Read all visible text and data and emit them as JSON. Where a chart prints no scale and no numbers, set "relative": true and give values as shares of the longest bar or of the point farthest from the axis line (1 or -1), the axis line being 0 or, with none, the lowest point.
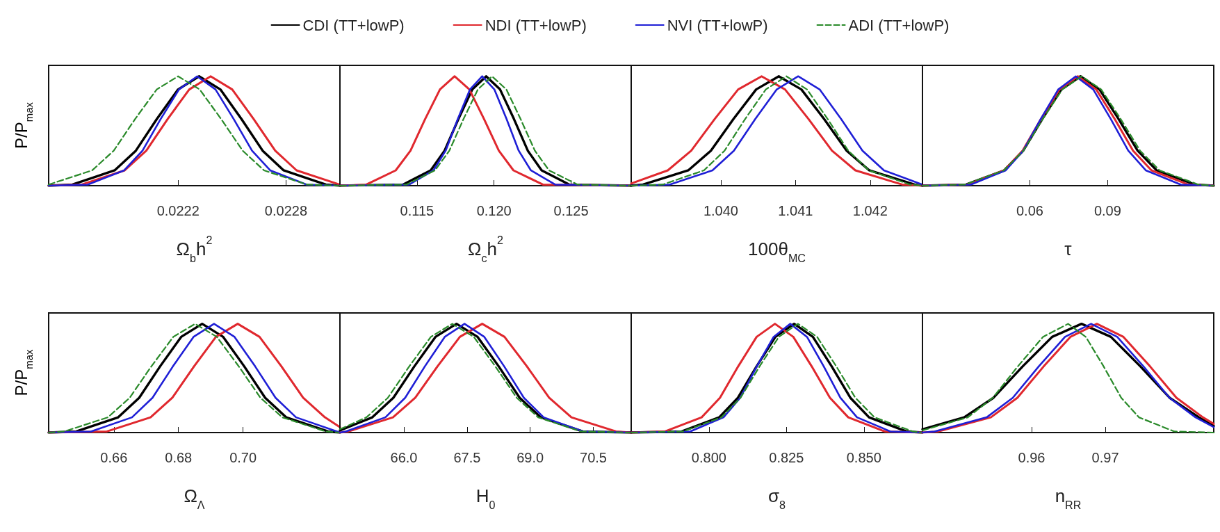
{
  "chart_data": [
    {
      "type": "line",
      "relative": true,
      "legend": "top",
      "tick_labels": "x",
      "marker": "none",
      "ylabel": "P/P$_{max}$",
      "xlabel": "Ω$_{b}$h$^{2}$",
      "xlim": [
        0.02148,
        0.0231
      ],
      "xticks": [
        0.0222,
        0.0228
      ],
      "series": [
        {
          "name": "CDI (TT+lowP)",
          "color": "#000000",
          "x": [
            0.02148,
            0.021612,
            0.021847,
            0.021965,
            0.022082,
            0.0222,
            0.022317,
            0.022435,
            0.022552,
            0.02267,
            0.022787,
            0.023022,
            0.0231
          ],
          "values": [
            0,
            0.01,
            0.14,
            0.32,
            0.61,
            0.88,
            1,
            0.88,
            0.61,
            0.32,
            0.14,
            0.01,
            0
          ]
        },
        {
          "name": "NDI (TT+lowP)",
          "color": "#e0282e",
          "x": [
            0.02148,
            0.021664,
            0.021903,
            0.022023,
            0.022142,
            0.022262,
            0.022381,
            0.022501,
            0.02262,
            0.02274,
            0.022859,
            0.023098
          ],
          "values": [
            0,
            0.01,
            0.14,
            0.32,
            0.61,
            0.88,
            1,
            0.88,
            0.61,
            0.32,
            0.14,
            0.01
          ]
        },
        {
          "name": "NVI (TT+lowP)",
          "color": "#1f1fd6",
          "x": [
            0.02148,
            0.021697,
            0.0219,
            0.022002,
            0.022103,
            0.022205,
            0.022306,
            0.022408,
            0.022509,
            0.022611,
            0.022712,
            0.022915,
            0.0231
          ],
          "values": [
            0,
            0.01,
            0.14,
            0.32,
            0.61,
            0.88,
            1,
            0.88,
            0.61,
            0.32,
            0.14,
            0.01,
            0
          ]
        },
        {
          "name": "ADI (TT+lowP)",
          "color": "#2a8a2a",
          "line_style": "dashed",
          "x": [
            0.02148,
            0.021722,
            0.021842,
            0.021961,
            0.022081,
            0.0222,
            0.02232,
            0.022439,
            0.022559,
            0.022678,
            0.022917,
            0.0231
          ],
          "values": [
            0.01,
            0.14,
            0.32,
            0.61,
            0.88,
            1,
            0.88,
            0.61,
            0.32,
            0.14,
            0.01,
            0
          ]
        }
      ]
    },
    {
      "type": "line",
      "relative": true,
      "tick_labels": "x",
      "marker": "none",
      "xlabel": "Ω$_{c}$h$^{2}$",
      "xlim": [
        0.11,
        0.1289
      ],
      "xticks": [
        0.115,
        {
          "value": 0.12,
          "label": "0.120"
        },
        0.125
      ],
      "series": [
        {
          "color": "#000000",
          "x": [
            0.11,
            0.11409,
            0.11589,
            0.11679,
            0.11769,
            0.11859,
            0.11949,
            0.12039,
            0.12129,
            0.12219,
            0.12309,
            0.12489,
            0.1289
          ],
          "values": [
            0,
            0.01,
            0.14,
            0.32,
            0.61,
            0.88,
            1,
            0.88,
            0.61,
            0.32,
            0.14,
            0.01,
            0
          ]
        },
        {
          "color": "#e0282e",
          "x": [
            0.11,
            0.11171,
            0.11362,
            0.11458,
            0.11553,
            0.11649,
            0.11744,
            0.1184,
            0.11935,
            0.12031,
            0.12126,
            0.12317,
            0.1289
          ],
          "values": [
            0,
            0.01,
            0.14,
            0.32,
            0.61,
            0.88,
            1,
            0.88,
            0.61,
            0.32,
            0.14,
            0.01,
            0
          ]
        },
        {
          "color": "#1f1fd6",
          "x": [
            0.11,
            0.11449,
            0.11607,
            0.11686,
            0.11765,
            0.11844,
            0.11923,
            0.12002,
            0.12081,
            0.1216,
            0.12239,
            0.12397,
            0.1289
          ],
          "values": [
            0,
            0.01,
            0.14,
            0.32,
            0.61,
            0.88,
            1,
            0.88,
            0.61,
            0.32,
            0.14,
            0.01,
            0
          ]
        },
        {
          "color": "#2a8a2a",
          "line_style": "dashed",
          "x": [
            0.11,
            0.11432,
            0.11617,
            0.1171,
            0.11802,
            0.11895,
            0.11987,
            0.1208,
            0.12172,
            0.12265,
            0.12357,
            0.12542,
            0.1289
          ],
          "values": [
            0,
            0.01,
            0.14,
            0.32,
            0.61,
            0.88,
            1,
            0.88,
            0.61,
            0.32,
            0.14,
            0.01,
            0
          ]
        }
      ]
    },
    {
      "type": "line",
      "relative": true,
      "tick_labels": "x",
      "marker": "none",
      "xlabel": "100θ$_{MC}$",
      "xlim": [
        1.0388,
        1.0427
      ],
      "xticks": [
        {
          "value": 1.04,
          "label": "1.040"
        },
        1.041,
        1.042
      ],
      "series": [
        {
          "color": "#000000",
          "x": [
            1.0388,
            1.038958,
            1.039564,
            1.039867,
            1.04017,
            1.040473,
            1.040776,
            1.041079,
            1.041382,
            1.041685,
            1.041988,
            1.042594,
            1.0427
          ],
          "values": [
            0,
            0.01,
            0.14,
            0.32,
            0.61,
            0.88,
            1,
            0.88,
            0.61,
            0.32,
            0.14,
            0.01,
            0
          ]
        },
        {
          "color": "#e0282e",
          "x": [
            1.0388,
            1.03929,
            1.039604,
            1.039918,
            1.040232,
            1.040546,
            1.04086,
            1.041174,
            1.041488,
            1.041802,
            1.04243,
            1.0427
          ],
          "values": [
            0.02,
            0.14,
            0.32,
            0.61,
            0.88,
            1,
            0.88,
            0.61,
            0.32,
            0.14,
            0.01,
            0
          ]
        },
        {
          "color": "#1f1fd6",
          "x": [
            1.0388,
            1.039314,
            1.039888,
            1.040175,
            1.040462,
            1.040749,
            1.041036,
            1.041323,
            1.04161,
            1.041897,
            1.042184,
            1.0427
          ],
          "values": [
            0,
            0.01,
            0.14,
            0.32,
            0.61,
            0.88,
            1,
            0.88,
            0.61,
            0.32,
            0.14,
            0.01
          ]
        },
        {
          "color": "#2a8a2a",
          "line_style": "dashed",
          "x": [
            1.0388,
            1.039222,
            1.039774,
            1.04005,
            1.040326,
            1.040602,
            1.040878,
            1.041154,
            1.04143,
            1.041706,
            1.041982,
            1.042534,
            1.0427
          ],
          "values": [
            0,
            0.01,
            0.14,
            0.32,
            0.61,
            0.88,
            1,
            0.88,
            0.61,
            0.32,
            0.14,
            0.01,
            0
          ]
        }
      ]
    },
    {
      "type": "line",
      "relative": true,
      "tick_labels": "x",
      "marker": "none",
      "xlabel": "τ",
      "xlim": [
        0.0186,
        0.1309
      ],
      "xticks": [
        0.06,
        0.09
      ],
      "series": [
        {
          "color": "#000000",
          "x": [
            0.0186,
            0.0354,
            0.0501,
            0.05745,
            0.0648,
            0.07215,
            0.0795,
            0.08685,
            0.0942,
            0.10155,
            0.1089,
            0.1236,
            0.1309
          ],
          "values": [
            0,
            0.01,
            0.14,
            0.32,
            0.61,
            0.88,
            1,
            0.88,
            0.61,
            0.32,
            0.14,
            0.01,
            0
          ]
        },
        {
          "color": "#e0282e",
          "x": [
            0.0186,
            0.0359,
            0.0501,
            0.0572,
            0.0643,
            0.0714,
            0.0785,
            0.0856,
            0.0927,
            0.0998,
            0.1069,
            0.1211,
            0.1309
          ],
          "values": [
            0,
            0.01,
            0.14,
            0.32,
            0.61,
            0.88,
            1,
            0.88,
            0.61,
            0.32,
            0.14,
            0.01,
            0
          ]
        },
        {
          "color": "#1f1fd6",
          "x": [
            0.0186,
            0.0372,
            0.0507,
            0.05745,
            0.0642,
            0.07095,
            0.0777,
            0.08445,
            0.0912,
            0.09795,
            0.1047,
            0.1182,
            0.1309
          ],
          "values": [
            0,
            0.01,
            0.14,
            0.32,
            0.61,
            0.88,
            1,
            0.88,
            0.61,
            0.32,
            0.14,
            0.01,
            0
          ]
        },
        {
          "color": "#2a8a2a",
          "line_style": "dashed",
          "x": [
            0.0186,
            0.035,
            0.05,
            0.0575,
            0.065,
            0.0725,
            0.08,
            0.0875,
            0.095,
            0.1025,
            0.11,
            0.125,
            0.1309
          ],
          "values": [
            0,
            0.01,
            0.14,
            0.32,
            0.61,
            0.88,
            1,
            0.88,
            0.61,
            0.32,
            0.14,
            0.01,
            0
          ]
        }
      ]
    },
    {
      "type": "line",
      "relative": true,
      "tick_labels": "x",
      "marker": "none",
      "ylabel": "P/P$_{max}$",
      "xlabel": "Ω$_{Λ}$",
      "xlim": [
        0.6398,
        0.73
      ],
      "xticks": [
        0.66,
        0.68,
        {
          "value": 0.7,
          "label": "0.70"
        }
      ],
      "series": [
        {
          "color": "#000000",
          "x": [
            0.6398,
            0.64834,
            0.66134,
            0.66784,
            0.67434,
            0.68084,
            0.68734,
            0.69384,
            0.70034,
            0.70684,
            0.71334,
            0.72634,
            0.73
          ],
          "values": [
            0,
            0.01,
            0.14,
            0.32,
            0.61,
            0.88,
            1,
            0.88,
            0.61,
            0.32,
            0.14,
            0.01,
            0
          ]
        },
        {
          "color": "#e0282e",
          "x": [
            0.6398,
            0.65785,
            0.67135,
            0.6781,
            0.68485,
            0.6916,
            0.69835,
            0.7051,
            0.71185,
            0.7186,
            0.72535,
            0.73
          ],
          "values": [
            0,
            0.01,
            0.14,
            0.32,
            0.61,
            0.88,
            1,
            0.88,
            0.61,
            0.32,
            0.14,
            0.05
          ]
        },
        {
          "color": "#1f1fd6",
          "x": [
            0.6398,
            0.65291,
            0.66561,
            0.67196,
            0.67831,
            0.68466,
            0.69101,
            0.69736,
            0.70371,
            0.71006,
            0.71641,
            0.72911,
            0.73
          ],
          "values": [
            0,
            0.01,
            0.14,
            0.32,
            0.61,
            0.88,
            1,
            0.88,
            0.61,
            0.32,
            0.14,
            0.01,
            0
          ]
        },
        {
          "color": "#2a8a2a",
          "line_style": "dashed",
          "x": [
            0.6398,
            0.64464,
            0.65814,
            0.66489,
            0.67164,
            0.67839,
            0.68514,
            0.69189,
            0.69864,
            0.70539,
            0.71214,
            0.72564,
            0.73
          ],
          "values": [
            0,
            0.01,
            0.14,
            0.32,
            0.61,
            0.88,
            1,
            0.88,
            0.61,
            0.32,
            0.14,
            0.01,
            0
          ]
        }
      ]
    },
    {
      "type": "line",
      "relative": true,
      "tick_labels": "x",
      "marker": "none",
      "xlabel": "H$_{0}$",
      "xlim": [
        64.48,
        71.4
      ],
      "xticks": [
        {
          "value": 66,
          "label": "66.0"
        },
        67.5,
        {
          "value": 69,
          "label": "69.0"
        },
        70.5
      ],
      "series": [
        {
          "color": "#000000",
          "x": [
            64.48,
            65.25,
            65.75,
            66.25,
            66.75,
            67.25,
            67.75,
            68.25,
            68.75,
            69.25,
            70.25,
            71.4
          ],
          "values": [
            0.02,
            0.14,
            0.32,
            0.61,
            0.88,
            1,
            0.88,
            0.61,
            0.32,
            0.14,
            0.01,
            0
          ]
        },
        {
          "color": "#e0282e",
          "x": [
            64.48,
            64.68,
            65.74,
            66.27,
            66.8,
            67.33,
            67.86,
            68.39,
            68.92,
            69.45,
            69.98,
            71.04,
            71.4
          ],
          "values": [
            0,
            0.01,
            0.14,
            0.32,
            0.61,
            0.88,
            1,
            0.88,
            0.61,
            0.32,
            0.14,
            0.01,
            0
          ]
        },
        {
          "color": "#1f1fd6",
          "x": [
            64.48,
            64.62,
            65.56,
            66.03,
            66.5,
            66.97,
            67.44,
            67.91,
            68.38,
            68.85,
            69.32,
            70.26,
            71.4
          ],
          "values": [
            0,
            0.01,
            0.14,
            0.32,
            0.61,
            0.88,
            1,
            0.88,
            0.61,
            0.32,
            0.14,
            0.01,
            0
          ]
        },
        {
          "color": "#2a8a2a",
          "line_style": "dashed",
          "x": [
            64.48,
            65.11,
            65.62,
            66.13,
            66.64,
            67.15,
            67.66,
            68.17,
            68.68,
            69.19,
            70.21,
            71.4
          ],
          "values": [
            0.03,
            0.14,
            0.32,
            0.61,
            0.88,
            1,
            0.88,
            0.61,
            0.32,
            0.14,
            0.01,
            0
          ]
        }
      ]
    },
    {
      "type": "line",
      "relative": true,
      "tick_labels": "x",
      "marker": "none",
      "xlabel": "σ$_{8}$",
      "xlim": [
        0.7749,
        0.8689
      ],
      "xticks": [
        {
          "value": 0.8,
          "label": "0.800"
        },
        0.825,
        {
          "value": 0.85,
          "label": "0.850"
        }
      ],
      "series": [
        {
          "color": "#000000",
          "x": [
            0.7749,
            0.79121,
            0.8033,
            0.80935,
            0.81539,
            0.82144,
            0.82748,
            0.83353,
            0.83957,
            0.84562,
            0.85166,
            0.86375,
            0.8689
          ],
          "values": [
            0,
            0.01,
            0.14,
            0.32,
            0.61,
            0.88,
            1,
            0.88,
            0.61,
            0.32,
            0.14,
            0.01,
            0
          ]
        },
        {
          "color": "#e0282e",
          "x": [
            0.7749,
            0.7858,
            0.79763,
            0.80355,
            0.80946,
            0.81538,
            0.82129,
            0.82721,
            0.83312,
            0.83904,
            0.84495,
            0.85678,
            0.8689
          ],
          "values": [
            0,
            0.01,
            0.14,
            0.32,
            0.61,
            0.88,
            1,
            0.88,
            0.61,
            0.32,
            0.14,
            0.01,
            0
          ]
        },
        {
          "color": "#1f1fd6",
          "x": [
            0.7749,
            0.79393,
            0.8047,
            0.81009,
            0.81547,
            0.82086,
            0.82624,
            0.83163,
            0.83701,
            0.8424,
            0.84778,
            0.85855,
            0.8689
          ],
          "values": [
            0,
            0.01,
            0.14,
            0.32,
            0.61,
            0.88,
            1,
            0.88,
            0.61,
            0.32,
            0.14,
            0.01,
            0
          ]
        },
        {
          "color": "#2a8a2a",
          "line_style": "dashed",
          "x": [
            0.7749,
            0.79166,
            0.80401,
            0.81019,
            0.81636,
            0.82254,
            0.82871,
            0.83489,
            0.84106,
            0.84724,
            0.85341,
            0.86576,
            0.8689
          ],
          "values": [
            0,
            0.01,
            0.14,
            0.32,
            0.61,
            0.88,
            1,
            0.88,
            0.61,
            0.32,
            0.14,
            0.01,
            0
          ]
        }
      ]
    },
    {
      "type": "line",
      "relative": true,
      "tick_labels": "x",
      "marker": "none",
      "xlabel": "n$_{RR}$",
      "xlim": [
        0.9452,
        0.9847
      ],
      "xticks": [
        0.96,
        0.97
      ],
      "series": [
        {
          "color": "#000000",
          "x": [
            0.9452,
            0.95085,
            0.95483,
            0.95881,
            0.96279,
            0.96677,
            0.97075,
            0.97473,
            0.97871,
            0.98269,
            0.9847
          ],
          "values": [
            0.03,
            0.14,
            0.32,
            0.61,
            0.88,
            1,
            0.88,
            0.61,
            0.32,
            0.14,
            0.06
          ]
        },
        {
          "color": "#e0282e",
          "x": [
            0.9452,
            0.94728,
            0.95447,
            0.95807,
            0.96166,
            0.96526,
            0.96885,
            0.97245,
            0.97604,
            0.97964,
            0.98323,
            0.9847
          ],
          "values": [
            0,
            0.01,
            0.14,
            0.32,
            0.61,
            0.88,
            1,
            0.88,
            0.61,
            0.32,
            0.14,
            0.08
          ]
        },
        {
          "color": "#1f1fd6",
          "x": [
            0.9452,
            0.94683,
            0.95391,
            0.95745,
            0.96099,
            0.96453,
            0.96807,
            0.97161,
            0.97515,
            0.97869,
            0.98223,
            0.9847
          ],
          "values": [
            0,
            0.01,
            0.14,
            0.32,
            0.61,
            0.88,
            1,
            0.88,
            0.61,
            0.32,
            0.14,
            0.05
          ]
        },
        {
          "color": "#2a8a2a",
          "line_style": "dashed",
          "x": [
            0.9452,
            0.95135,
            0.95475,
            0.95815,
            0.96155,
            0.96495,
            0.96735,
            0.96975,
            0.97215,
            0.97455,
            0.97935,
            0.9847
          ],
          "values": [
            0.02,
            0.14,
            0.32,
            0.61,
            0.88,
            1,
            0.88,
            0.61,
            0.32,
            0.14,
            0.01,
            0
          ]
        }
      ]
    }
  ]
}
